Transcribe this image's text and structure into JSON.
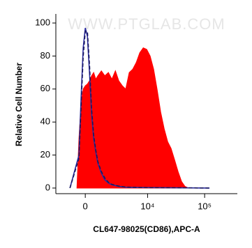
{
  "chart_data": {
    "type": "area",
    "watermark": "WWW.PTGLAB.COM",
    "x_label": "CL647-98025(CD86),APC-A",
    "y_label": "Relative Cell Number",
    "xscale": "asinh",
    "xlim": [
      -2430,
      373000
    ],
    "xticks": [
      0,
      {
        "value": 10000,
        "label": "10⁴"
      },
      {
        "value": 100000,
        "label": "10⁵"
      }
    ],
    "ylim": [
      -3.4,
      105.5
    ],
    "yticks": [
      0,
      20,
      40,
      60,
      80,
      100
    ],
    "series": [
      {
        "color": "#ff0000",
        "fill": true,
        "x": [
          -563,
          -420,
          -278,
          -138,
          0,
          138,
          278,
          420,
          563,
          712,
          866,
          1135,
          1428,
          1755,
          2116,
          2510,
          2950,
          3450,
          4010,
          4670,
          5410,
          6260,
          7250,
          8370,
          9650,
          11100,
          12800,
          14700,
          17000,
          19600,
          22600,
          25900,
          29900,
          34300,
          39500,
          45400,
          52300
        ],
        "values": [
          0,
          30,
          52,
          60,
          62,
          63,
          65,
          68,
          70,
          66,
          68,
          71,
          68,
          70,
          66,
          71,
          65,
          62,
          60,
          70,
          72,
          76,
          82,
          85,
          84,
          80,
          72,
          60,
          46,
          36,
          28,
          24,
          17,
          10,
          4,
          1,
          0
        ]
      },
      {
        "color": "#2a2aa0",
        "fill": false,
        "dash": false,
        "x": [
          -1080,
          -420,
          -278,
          -138,
          0,
          138,
          278,
          420,
          563,
          712,
          866,
          1135,
          1428,
          1755,
          2116,
          2950,
          4010,
          7250,
          29900,
          121700
        ],
        "values": [
          0,
          20,
          55,
          85,
          97,
          92,
          70,
          45,
          30,
          22,
          15,
          9,
          5,
          3,
          2,
          1,
          0.5,
          0.3,
          0.2,
          0
        ]
      },
      {
        "color": "#1a1a60",
        "fill": false,
        "dash": true,
        "x": [
          -1080,
          -420,
          -278,
          -138,
          0,
          138,
          278,
          420,
          563,
          712,
          866,
          1135,
          1428,
          1755,
          2116,
          2950,
          4010,
          7250,
          29900,
          121700
        ],
        "values": [
          0,
          18,
          50,
          80,
          95,
          95,
          75,
          48,
          32,
          23,
          16,
          10,
          6,
          3.5,
          2.2,
          1.2,
          0.6,
          0.3,
          0.2,
          0
        ]
      }
    ]
  }
}
